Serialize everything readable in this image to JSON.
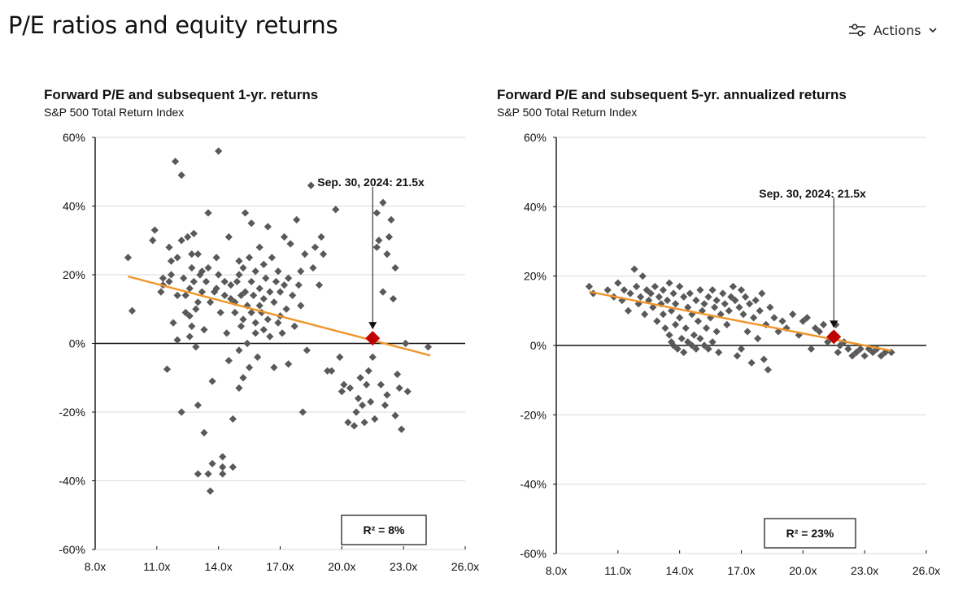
{
  "page": {
    "title": "P/E ratios and equity returns",
    "actions_label": "Actions",
    "actions_icon": "sliders-icon",
    "actions_chevron": "chevron-down-icon"
  },
  "colors": {
    "scatter": "#595959",
    "trend": "#F0952B",
    "highlight": "#C00000",
    "grid": "#d9d9d9"
  },
  "chart_data": [
    {
      "type": "scatter",
      "title": "Forward P/E and subsequent 1-yr. returns",
      "subtitle": "S&P 500 Total Return Index",
      "xlabel": "",
      "ylabel": "",
      "xlim": [
        8,
        26
      ],
      "ylim": [
        -60,
        60
      ],
      "x_ticks": [
        8,
        11,
        14,
        17,
        20,
        23,
        26
      ],
      "x_tick_labels": [
        "8.0x",
        "11.0x",
        "14.0x",
        "17.0x",
        "20.0x",
        "23.0x",
        "26.0x"
      ],
      "y_ticks": [
        -60,
        -40,
        -20,
        0,
        20,
        40,
        60
      ],
      "y_tick_labels": [
        "-60%",
        "-40%",
        "-20%",
        "0%",
        "20%",
        "40%",
        "60%"
      ],
      "trendline": {
        "x": [
          9.6,
          24.3
        ],
        "y": [
          19.5,
          -3.5
        ]
      },
      "highlight": {
        "x": 21.5,
        "y": 1.5
      },
      "annotation": {
        "text": "Sep. 30, 2024:  21.5x",
        "x": 21.5,
        "y": 1.5
      },
      "r_squared_label": "R² = 8%",
      "points": [
        [
          9.6,
          25
        ],
        [
          9.8,
          9.5
        ],
        [
          10.8,
          30
        ],
        [
          10.9,
          33
        ],
        [
          11.2,
          15
        ],
        [
          11.3,
          17
        ],
        [
          11.3,
          19
        ],
        [
          11.5,
          -7.5
        ],
        [
          11.6,
          28
        ],
        [
          11.6,
          18
        ],
        [
          11.7,
          20
        ],
        [
          11.7,
          24
        ],
        [
          11.8,
          6
        ],
        [
          11.9,
          53
        ],
        [
          12.0,
          14
        ],
        [
          12.0,
          25
        ],
        [
          12.0,
          1
        ],
        [
          12.2,
          30
        ],
        [
          12.2,
          49
        ],
        [
          12.2,
          -20
        ],
        [
          12.3,
          19
        ],
        [
          12.4,
          9
        ],
        [
          12.4,
          14
        ],
        [
          12.5,
          31
        ],
        [
          12.6,
          16
        ],
        [
          12.6,
          8
        ],
        [
          12.6,
          2
        ],
        [
          12.7,
          26
        ],
        [
          12.7,
          22
        ],
        [
          12.7,
          5
        ],
        [
          12.8,
          18
        ],
        [
          12.8,
          32
        ],
        [
          12.9,
          -1
        ],
        [
          12.9,
          10
        ],
        [
          13.0,
          -18
        ],
        [
          13.0,
          -38
        ],
        [
          13.0,
          26
        ],
        [
          13.0,
          12
        ],
        [
          13.1,
          20
        ],
        [
          13.2,
          15
        ],
        [
          13.2,
          21
        ],
        [
          13.3,
          4
        ],
        [
          13.3,
          -26
        ],
        [
          13.4,
          18
        ],
        [
          13.5,
          -38
        ],
        [
          13.5,
          38
        ],
        [
          13.5,
          22
        ],
        [
          13.6,
          12
        ],
        [
          13.6,
          -43
        ],
        [
          13.7,
          -35
        ],
        [
          13.7,
          -11
        ],
        [
          13.8,
          15
        ],
        [
          13.9,
          16
        ],
        [
          13.9,
          25
        ],
        [
          14.0,
          56
        ],
        [
          14.0,
          20
        ],
        [
          14.1,
          9
        ],
        [
          14.2,
          -33
        ],
        [
          14.2,
          -36
        ],
        [
          14.2,
          -38
        ],
        [
          14.3,
          18
        ],
        [
          14.3,
          14
        ],
        [
          14.4,
          3
        ],
        [
          14.5,
          -5
        ],
        [
          14.5,
          31
        ],
        [
          14.6,
          13
        ],
        [
          14.6,
          17
        ],
        [
          14.7,
          -22
        ],
        [
          14.7,
          -36
        ],
        [
          14.8,
          9
        ],
        [
          14.8,
          12
        ],
        [
          14.9,
          18
        ],
        [
          15.0,
          -2
        ],
        [
          15.0,
          20
        ],
        [
          15.0,
          24
        ],
        [
          15.0,
          -13
        ],
        [
          15.1,
          5
        ],
        [
          15.1,
          14
        ],
        [
          15.2,
          -10
        ],
        [
          15.2,
          7
        ],
        [
          15.2,
          22
        ],
        [
          15.3,
          38
        ],
        [
          15.3,
          15
        ],
        [
          15.4,
          0
        ],
        [
          15.4,
          11
        ],
        [
          15.5,
          25
        ],
        [
          15.5,
          -7
        ],
        [
          15.6,
          35
        ],
        [
          15.6,
          18
        ],
        [
          15.6,
          9
        ],
        [
          15.7,
          14
        ],
        [
          15.8,
          21
        ],
        [
          15.8,
          6
        ],
        [
          15.8,
          3
        ],
        [
          15.9,
          -4
        ],
        [
          16.0,
          28
        ],
        [
          16.0,
          16
        ],
        [
          16.0,
          11
        ],
        [
          16.1,
          9
        ],
        [
          16.2,
          23
        ],
        [
          16.2,
          13
        ],
        [
          16.2,
          4
        ],
        [
          16.3,
          19
        ],
        [
          16.4,
          34
        ],
        [
          16.4,
          7
        ],
        [
          16.5,
          15
        ],
        [
          16.5,
          2
        ],
        [
          16.6,
          25
        ],
        [
          16.7,
          12
        ],
        [
          16.7,
          -7
        ],
        [
          16.8,
          18
        ],
        [
          16.9,
          21
        ],
        [
          16.9,
          6
        ],
        [
          17.0,
          15
        ],
        [
          17.0,
          8
        ],
        [
          17.1,
          3
        ],
        [
          17.2,
          31
        ],
        [
          17.2,
          17
        ],
        [
          17.3,
          10
        ],
        [
          17.4,
          -6
        ],
        [
          17.4,
          19
        ],
        [
          17.5,
          29
        ],
        [
          17.6,
          14
        ],
        [
          17.7,
          5
        ],
        [
          17.8,
          36
        ],
        [
          17.9,
          17
        ],
        [
          18.0,
          11
        ],
        [
          18.0,
          21
        ],
        [
          18.1,
          -20
        ],
        [
          18.2,
          26
        ],
        [
          18.3,
          -2
        ],
        [
          18.5,
          46
        ],
        [
          18.6,
          22
        ],
        [
          18.7,
          28
        ],
        [
          18.9,
          17
        ],
        [
          19.0,
          31
        ],
        [
          19.1,
          26
        ],
        [
          19.3,
          -8
        ],
        [
          19.5,
          -8
        ],
        [
          19.7,
          39
        ],
        [
          19.9,
          -4
        ],
        [
          20.0,
          -14
        ],
        [
          20.1,
          -12
        ],
        [
          20.3,
          -23
        ],
        [
          20.4,
          -13
        ],
        [
          20.6,
          -24
        ],
        [
          20.7,
          -20
        ],
        [
          20.8,
          -16
        ],
        [
          20.9,
          -10
        ],
        [
          21.0,
          -18
        ],
        [
          21.1,
          -23
        ],
        [
          21.2,
          -12
        ],
        [
          21.3,
          -8
        ],
        [
          21.4,
          -17
        ],
        [
          21.5,
          -4
        ],
        [
          21.6,
          -22
        ],
        [
          21.7,
          28
        ],
        [
          21.7,
          38
        ],
        [
          21.8,
          30
        ],
        [
          21.9,
          -12
        ],
        [
          22.0,
          41
        ],
        [
          22.0,
          15
        ],
        [
          22.1,
          -18
        ],
        [
          22.2,
          26
        ],
        [
          22.2,
          -15
        ],
        [
          22.3,
          31
        ],
        [
          22.4,
          36
        ],
        [
          22.5,
          13
        ],
        [
          22.6,
          22
        ],
        [
          22.6,
          -21
        ],
        [
          22.7,
          -9
        ],
        [
          22.8,
          -13
        ],
        [
          22.9,
          -25
        ],
        [
          23.1,
          0
        ],
        [
          23.2,
          -14
        ],
        [
          24.2,
          -1
        ]
      ]
    },
    {
      "type": "scatter",
      "title": "Forward P/E and subsequent 5-yr. annualized returns",
      "subtitle": "S&P 500 Total Return Index",
      "xlabel": "",
      "ylabel": "",
      "xlim": [
        8,
        26
      ],
      "ylim": [
        -60,
        60
      ],
      "x_ticks": [
        8,
        11,
        14,
        17,
        20,
        23,
        26
      ],
      "x_tick_labels": [
        "8.0x",
        "11.0x",
        "14.0x",
        "17.0x",
        "20.0x",
        "23.0x",
        "26.0x"
      ],
      "y_ticks": [
        -60,
        -40,
        -20,
        0,
        20,
        40,
        60
      ],
      "y_tick_labels": [
        "-60%",
        "-40%",
        "-20%",
        "0%",
        "20%",
        "40%",
        "60%"
      ],
      "trendline": {
        "x": [
          9.6,
          24.3
        ],
        "y": [
          15.5,
          -1.5
        ]
      },
      "highlight": {
        "x": 21.5,
        "y": 2.5
      },
      "annotation": {
        "text": "Sep. 30, 2024:  21.5x",
        "x": 21.5,
        "y": 2.5
      },
      "r_squared_label": "R² = 23%",
      "points": [
        [
          9.6,
          17
        ],
        [
          9.8,
          15
        ],
        [
          10.5,
          16
        ],
        [
          10.8,
          14
        ],
        [
          11.0,
          18
        ],
        [
          11.2,
          13
        ],
        [
          11.3,
          16
        ],
        [
          11.5,
          10
        ],
        [
          11.6,
          15
        ],
        [
          11.8,
          22
        ],
        [
          11.9,
          17
        ],
        [
          12.0,
          12
        ],
        [
          12.1,
          14
        ],
        [
          12.2,
          20
        ],
        [
          12.3,
          9
        ],
        [
          12.4,
          16
        ],
        [
          12.5,
          13
        ],
        [
          12.6,
          15
        ],
        [
          12.7,
          11
        ],
        [
          12.8,
          17
        ],
        [
          12.9,
          7
        ],
        [
          13.0,
          14
        ],
        [
          13.1,
          12
        ],
        [
          13.2,
          16
        ],
        [
          13.2,
          9
        ],
        [
          13.3,
          5
        ],
        [
          13.4,
          13
        ],
        [
          13.5,
          18
        ],
        [
          13.5,
          3
        ],
        [
          13.6,
          10
        ],
        [
          13.6,
          1
        ],
        [
          13.7,
          15
        ],
        [
          13.7,
          0
        ],
        [
          13.8,
          6
        ],
        [
          13.8,
          12
        ],
        [
          13.9,
          -1
        ],
        [
          14.0,
          17
        ],
        [
          14.0,
          8
        ],
        [
          14.1,
          2
        ],
        [
          14.2,
          14
        ],
        [
          14.2,
          -2
        ],
        [
          14.3,
          5
        ],
        [
          14.4,
          11
        ],
        [
          14.4,
          1
        ],
        [
          14.5,
          15
        ],
        [
          14.6,
          0
        ],
        [
          14.6,
          9
        ],
        [
          14.7,
          3
        ],
        [
          14.8,
          13
        ],
        [
          14.8,
          -1
        ],
        [
          14.9,
          7
        ],
        [
          15.0,
          16
        ],
        [
          15.0,
          2
        ],
        [
          15.1,
          10
        ],
        [
          15.2,
          0
        ],
        [
          15.2,
          12
        ],
        [
          15.3,
          5
        ],
        [
          15.4,
          14
        ],
        [
          15.4,
          -1
        ],
        [
          15.5,
          8
        ],
        [
          15.6,
          16
        ],
        [
          15.6,
          1
        ],
        [
          15.7,
          11
        ],
        [
          15.8,
          4
        ],
        [
          15.8,
          13
        ],
        [
          15.9,
          -2
        ],
        [
          16.0,
          9
        ],
        [
          16.1,
          15
        ],
        [
          16.2,
          12
        ],
        [
          16.3,
          6
        ],
        [
          16.4,
          10
        ],
        [
          16.5,
          14
        ],
        [
          16.6,
          17
        ],
        [
          16.7,
          13
        ],
        [
          16.8,
          -3
        ],
        [
          16.9,
          11
        ],
        [
          17.0,
          16
        ],
        [
          17.0,
          -1
        ],
        [
          17.1,
          9
        ],
        [
          17.2,
          14
        ],
        [
          17.3,
          4
        ],
        [
          17.4,
          12
        ],
        [
          17.5,
          -5
        ],
        [
          17.6,
          8
        ],
        [
          17.7,
          13
        ],
        [
          17.8,
          2
        ],
        [
          17.9,
          10
        ],
        [
          18.0,
          15
        ],
        [
          18.1,
          -4
        ],
        [
          18.2,
          6
        ],
        [
          18.3,
          -7
        ],
        [
          18.4,
          11
        ],
        [
          18.6,
          8
        ],
        [
          18.8,
          4
        ],
        [
          19.0,
          7
        ],
        [
          19.2,
          5
        ],
        [
          19.5,
          9
        ],
        [
          19.8,
          3
        ],
        [
          20.0,
          7
        ],
        [
          20.2,
          8
        ],
        [
          20.4,
          -1
        ],
        [
          20.6,
          5
        ],
        [
          20.8,
          4
        ],
        [
          21.0,
          6
        ],
        [
          21.2,
          1
        ],
        [
          21.4,
          3
        ],
        [
          21.6,
          6
        ],
        [
          21.7,
          -2
        ],
        [
          21.8,
          0
        ],
        [
          22.0,
          1
        ],
        [
          22.2,
          -1
        ],
        [
          22.4,
          -3
        ],
        [
          22.6,
          -2
        ],
        [
          22.8,
          -1
        ],
        [
          23.0,
          -3
        ],
        [
          23.2,
          -1
        ],
        [
          23.4,
          -2
        ],
        [
          23.6,
          -1
        ],
        [
          23.8,
          -3
        ],
        [
          24.0,
          -2
        ],
        [
          24.3,
          -2
        ]
      ]
    }
  ]
}
